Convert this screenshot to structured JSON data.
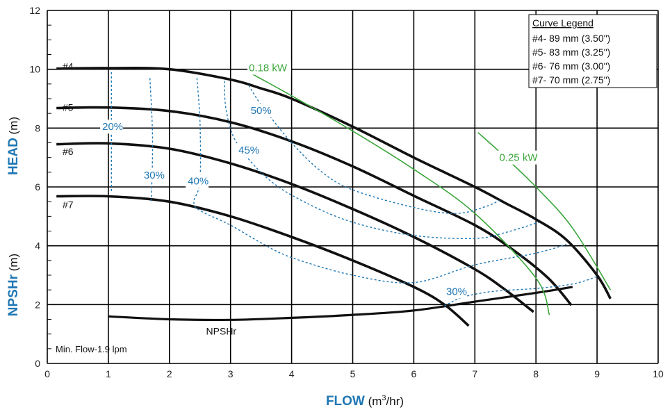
{
  "chart_data": {
    "type": "line",
    "xlabel": {
      "bold": "FLOW",
      "unit_pre": " (m",
      "unit_sup": "3",
      "unit_post": "/hr)"
    },
    "ylabel_top": {
      "bold": "HEAD",
      "unit": " (m)"
    },
    "ylabel_bottom": {
      "bold": "NPSHr",
      "unit": " (m)"
    },
    "xlim": [
      0,
      10
    ],
    "ylim": [
      0,
      12
    ],
    "x_ticks": [
      "0",
      "1",
      "2",
      "3",
      "4",
      "5",
      "6",
      "7",
      "8",
      "9",
      "10"
    ],
    "y_ticks": [
      "0",
      "2",
      "4",
      "6",
      "8",
      "10",
      "12"
    ],
    "grid": true,
    "legend": {
      "position": "top-right",
      "title": "Curve Legend",
      "entries": [
        "#4- 89 mm (3.50\")",
        "#5- 83 mm (3.25\")",
        "#6- 76 mm (3.00\")",
        "#7- 70 mm (2.75\")"
      ]
    },
    "note": "Min. Flow-1.9 lpm",
    "colors": {
      "head": "#111111",
      "efficiency": "#1f77b4",
      "power": "#3aa63a",
      "grid": "#000000"
    },
    "series": [
      {
        "name": "#4",
        "kind": "head",
        "label_at": [
          0.25,
          10.1
        ],
        "points": [
          [
            0.15,
            10.02
          ],
          [
            1,
            10.04
          ],
          [
            2,
            10.0
          ],
          [
            3,
            9.65
          ],
          [
            3.5,
            9.35
          ],
          [
            4,
            9.0
          ],
          [
            5,
            8.05
          ],
          [
            6,
            7.0
          ],
          [
            7,
            6.0
          ],
          [
            7.5,
            5.45
          ],
          [
            8,
            4.9
          ],
          [
            8.5,
            4.2
          ],
          [
            9,
            3.0
          ],
          [
            9.22,
            2.2
          ]
        ]
      },
      {
        "name": "#5",
        "kind": "head",
        "label_at": [
          0.25,
          8.7
        ],
        "points": [
          [
            0.15,
            8.68
          ],
          [
            1,
            8.7
          ],
          [
            2,
            8.58
          ],
          [
            3,
            8.2
          ],
          [
            4,
            7.55
          ],
          [
            5,
            6.7
          ],
          [
            6,
            5.7
          ],
          [
            7,
            4.7
          ],
          [
            7.6,
            3.9
          ],
          [
            8.2,
            2.9
          ],
          [
            8.58,
            1.98
          ]
        ]
      },
      {
        "name": "#6",
        "kind": "head",
        "label_at": [
          0.25,
          7.2
        ],
        "points": [
          [
            0.15,
            7.45
          ],
          [
            1,
            7.48
          ],
          [
            2,
            7.3
          ],
          [
            3,
            6.8
          ],
          [
            4,
            6.1
          ],
          [
            5,
            5.25
          ],
          [
            6,
            4.3
          ],
          [
            7,
            3.2
          ],
          [
            7.5,
            2.5
          ],
          [
            7.96,
            1.75
          ]
        ]
      },
      {
        "name": "#7",
        "kind": "head",
        "label_at": [
          0.25,
          5.4
        ],
        "points": [
          [
            0.15,
            5.68
          ],
          [
            1,
            5.68
          ],
          [
            2,
            5.5
          ],
          [
            3,
            5.0
          ],
          [
            4,
            4.3
          ],
          [
            5,
            3.5
          ],
          [
            6,
            2.6
          ],
          [
            6.5,
            2.0
          ],
          [
            6.9,
            1.28
          ]
        ]
      },
      {
        "name": "NPSHr",
        "kind": "npsh",
        "label_at": [
          2.6,
          1.1
        ],
        "points": [
          [
            1,
            1.6
          ],
          [
            2,
            1.5
          ],
          [
            3,
            1.48
          ],
          [
            4,
            1.55
          ],
          [
            5,
            1.65
          ],
          [
            6,
            1.8
          ],
          [
            7,
            2.1
          ],
          [
            8,
            2.4
          ],
          [
            8.6,
            2.6
          ]
        ]
      },
      {
        "name": "0.18 kW",
        "kind": "power",
        "label_at": [
          3.3,
          10.05
        ],
        "points": [
          [
            3.3,
            9.9
          ],
          [
            4,
            9.1
          ],
          [
            5,
            7.9
          ],
          [
            6,
            6.6
          ],
          [
            7,
            5.1
          ],
          [
            8,
            2.9
          ],
          [
            8.22,
            1.65
          ]
        ]
      },
      {
        "name": "0.25 kW",
        "kind": "power",
        "label_at": [
          7.4,
          7.0
        ],
        "points": [
          [
            7.05,
            7.85
          ],
          [
            7.4,
            7.2
          ],
          [
            8,
            6.0
          ],
          [
            8.6,
            4.6
          ],
          [
            9.22,
            2.5
          ]
        ]
      },
      {
        "name": "20%",
        "kind": "efficiency",
        "label_at": [
          0.9,
          8.05
        ],
        "points": [
          [
            1.05,
            9.9
          ],
          [
            1.05,
            8.6
          ],
          [
            1.05,
            7.3
          ],
          [
            1.05,
            5.8
          ]
        ]
      },
      {
        "name": "30%",
        "kind": "efficiency",
        "label_at": [
          1.58,
          6.4
        ],
        "points": [
          [
            1.68,
            9.7
          ],
          [
            1.72,
            8.0
          ],
          [
            1.72,
            6.7
          ],
          [
            1.7,
            5.5
          ]
        ]
      },
      {
        "name": "40%",
        "kind": "efficiency",
        "label_at": [
          2.3,
          6.2
        ],
        "points": [
          [
            2.45,
            9.7
          ],
          [
            2.5,
            8.2
          ],
          [
            2.5,
            6.2
          ],
          [
            2.4,
            5.5
          ],
          [
            2.5,
            5.2
          ],
          [
            3.0,
            4.7
          ],
          [
            3.5,
            4.1
          ],
          [
            4,
            3.6
          ],
          [
            5,
            3.0
          ],
          [
            6,
            2.75
          ],
          [
            7,
            3.35
          ],
          [
            8,
            3.75
          ],
          [
            8.5,
            4.05
          ]
        ]
      },
      {
        "name": "45%",
        "kind": "efficiency",
        "label_at": [
          3.13,
          7.25
        ],
        "points": [
          [
            2.9,
            9.6
          ],
          [
            2.93,
            8.6
          ],
          [
            3.1,
            7.5
          ],
          [
            3.6,
            6.3
          ],
          [
            4.2,
            5.5
          ],
          [
            5,
            4.8
          ],
          [
            6,
            4.35
          ],
          [
            7,
            4.25
          ],
          [
            7.5,
            4.45
          ],
          [
            8.05,
            4.8
          ]
        ]
      },
      {
        "name": "50%",
        "kind": "efficiency",
        "label_at": [
          3.33,
          8.6
        ],
        "points": [
          [
            3.3,
            9.45
          ],
          [
            3.5,
            8.8
          ],
          [
            4,
            7.5
          ],
          [
            4.5,
            6.5
          ],
          [
            5,
            5.9
          ],
          [
            6,
            5.3
          ],
          [
            6.7,
            5.1
          ],
          [
            7.2,
            5.35
          ],
          [
            7.4,
            5.55
          ]
        ]
      },
      {
        "name": "30%",
        "kind": "efficiency",
        "label_at": [
          6.53,
          2.45
        ],
        "points": [
          [
            6.5,
            1.95
          ],
          [
            6.8,
            2.25
          ],
          [
            7.3,
            2.45
          ],
          [
            8,
            2.55
          ],
          [
            8.6,
            2.7
          ],
          [
            9.0,
            2.95
          ]
        ]
      }
    ]
  }
}
